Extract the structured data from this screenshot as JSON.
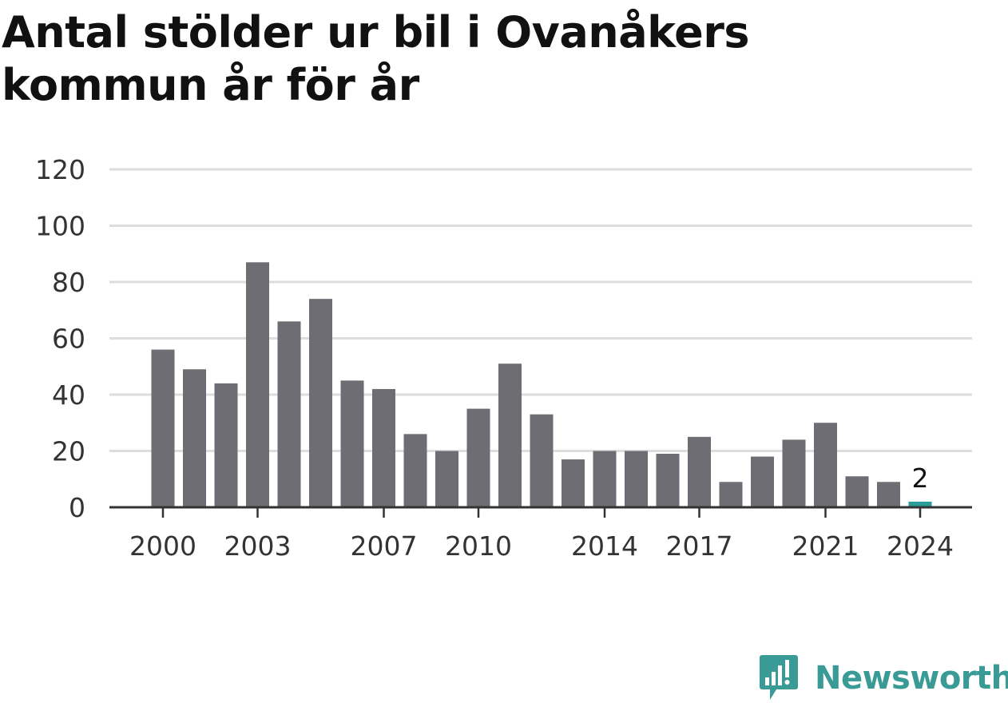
{
  "chart_data": {
    "type": "bar",
    "title": "Antal stölder ur bil i Ovanåkers kommun år för år",
    "xlabel": "",
    "ylabel": "",
    "categories": [
      "2000",
      "2001",
      "2002",
      "2003",
      "2004",
      "2005",
      "2006",
      "2007",
      "2008",
      "2009",
      "2010",
      "2011",
      "2012",
      "2013",
      "2014",
      "2015",
      "2016",
      "2017",
      "2018",
      "2019",
      "2020",
      "2021",
      "2022",
      "2023",
      "2024"
    ],
    "values": [
      56,
      49,
      44,
      87,
      66,
      74,
      45,
      42,
      26,
      20,
      35,
      51,
      33,
      17,
      20,
      20,
      19,
      25,
      9,
      18,
      24,
      30,
      11,
      9,
      2
    ],
    "ylim": [
      0,
      120
    ],
    "y_ticks": [
      0,
      20,
      40,
      60,
      80,
      100,
      120
    ],
    "x_tick_labels": [
      "2000",
      "2003",
      "2007",
      "2010",
      "2014",
      "2017",
      "2021",
      "2024"
    ],
    "highlight_category": "2024",
    "highlight_label": "2",
    "grid": true,
    "colors": {
      "bar": "#6e6d73",
      "highlight": "#2a9d98",
      "grid": "#dddddd",
      "axis": "#333333"
    }
  },
  "brand": {
    "name": "Newsworthy",
    "icon": "newsworthy-logo-icon",
    "color": "#3a9a96"
  }
}
